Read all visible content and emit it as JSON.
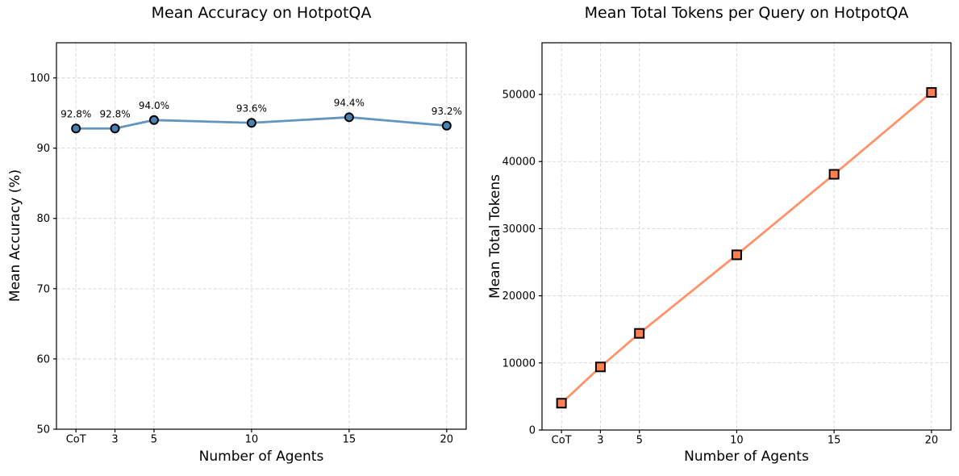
{
  "figure": {
    "background_color": "#ffffff"
  },
  "chart_data": [
    {
      "type": "line",
      "title": "Mean Accuracy on HotpotQA",
      "xlabel": "Number of Agents",
      "ylabel": "Mean Accuracy (%)",
      "categories": [
        "CoT",
        "3",
        "5",
        "10",
        "15",
        "20"
      ],
      "x": [
        1,
        3,
        5,
        10,
        15,
        20
      ],
      "values": [
        92.8,
        92.8,
        94.0,
        93.6,
        94.4,
        93.2
      ],
      "point_labels": [
        "92.8%",
        "92.8%",
        "94.0%",
        "93.6%",
        "94.4%",
        "93.2%"
      ],
      "xlim": [
        0,
        21
      ],
      "ylim": [
        50,
        105
      ],
      "yticks": [
        50,
        60,
        70,
        80,
        90,
        100
      ],
      "grid": true,
      "legend": "none",
      "line_color": "#4682B4",
      "marker": "circle",
      "marker_edge_color": "#000000"
    },
    {
      "type": "line",
      "title": "Mean Total Tokens per Query on HotpotQA",
      "xlabel": "Number of Agents",
      "ylabel": "Mean Total Tokens",
      "categories": [
        "CoT",
        "3",
        "5",
        "10",
        "15",
        "20"
      ],
      "x": [
        1,
        3,
        5,
        10,
        15,
        20
      ],
      "values": [
        4000,
        9400,
        14400,
        26100,
        38100,
        50300
      ],
      "point_labels": [],
      "xlim": [
        0,
        21
      ],
      "ylim": [
        0,
        57700
      ],
      "yticks": [
        0,
        10000,
        20000,
        30000,
        40000,
        50000
      ],
      "grid": true,
      "legend": "none",
      "line_color": "#FF7F50",
      "marker": "square",
      "marker_edge_color": "#000000"
    }
  ]
}
